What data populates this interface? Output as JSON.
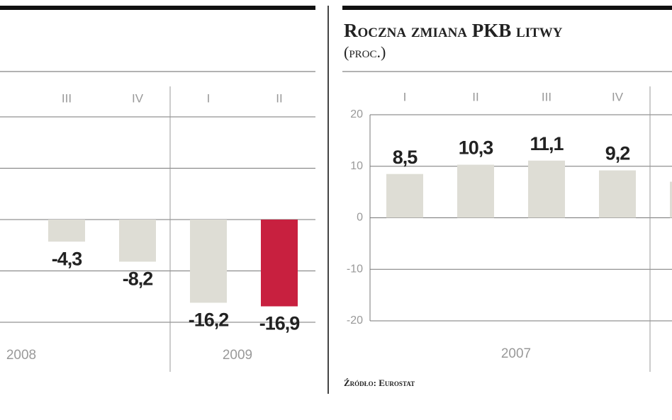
{
  "chart_data": [
    {
      "type": "bar",
      "categories": [
        "III",
        "IV",
        "I",
        "II"
      ],
      "values": [
        -4.3,
        -8.2,
        -16.2,
        -16.9
      ],
      "value_labels": [
        "-4,3",
        "-8,2",
        "-16,2",
        "-16,9"
      ],
      "colors": [
        "#deddd5",
        "#deddd5",
        "#deddd5",
        "#c8203f"
      ],
      "year_labels": [
        "2008",
        "2009"
      ],
      "ylim": [
        -20,
        20
      ],
      "yticks": [
        -20,
        -10,
        0,
        10,
        20
      ],
      "grid": true,
      "show_tick_labels": false
    },
    {
      "type": "bar",
      "title": "Roczna zmiana PKB litwy",
      "subtitle": "(proc.)",
      "categories": [
        "I",
        "II",
        "III",
        "IV",
        null
      ],
      "values": [
        8.5,
        10.3,
        11.1,
        9.2,
        7
      ],
      "value_labels": [
        "8,5",
        "10,3",
        "11,1",
        "9,2",
        null
      ],
      "color": "#deddd5",
      "year_labels": [
        "2007"
      ],
      "source": "Źródło: Eurostat",
      "ylim": [
        -20,
        20
      ],
      "yticks": [
        -20,
        -10,
        0,
        10,
        20
      ],
      "grid": true,
      "show_tick_labels": true
    }
  ]
}
